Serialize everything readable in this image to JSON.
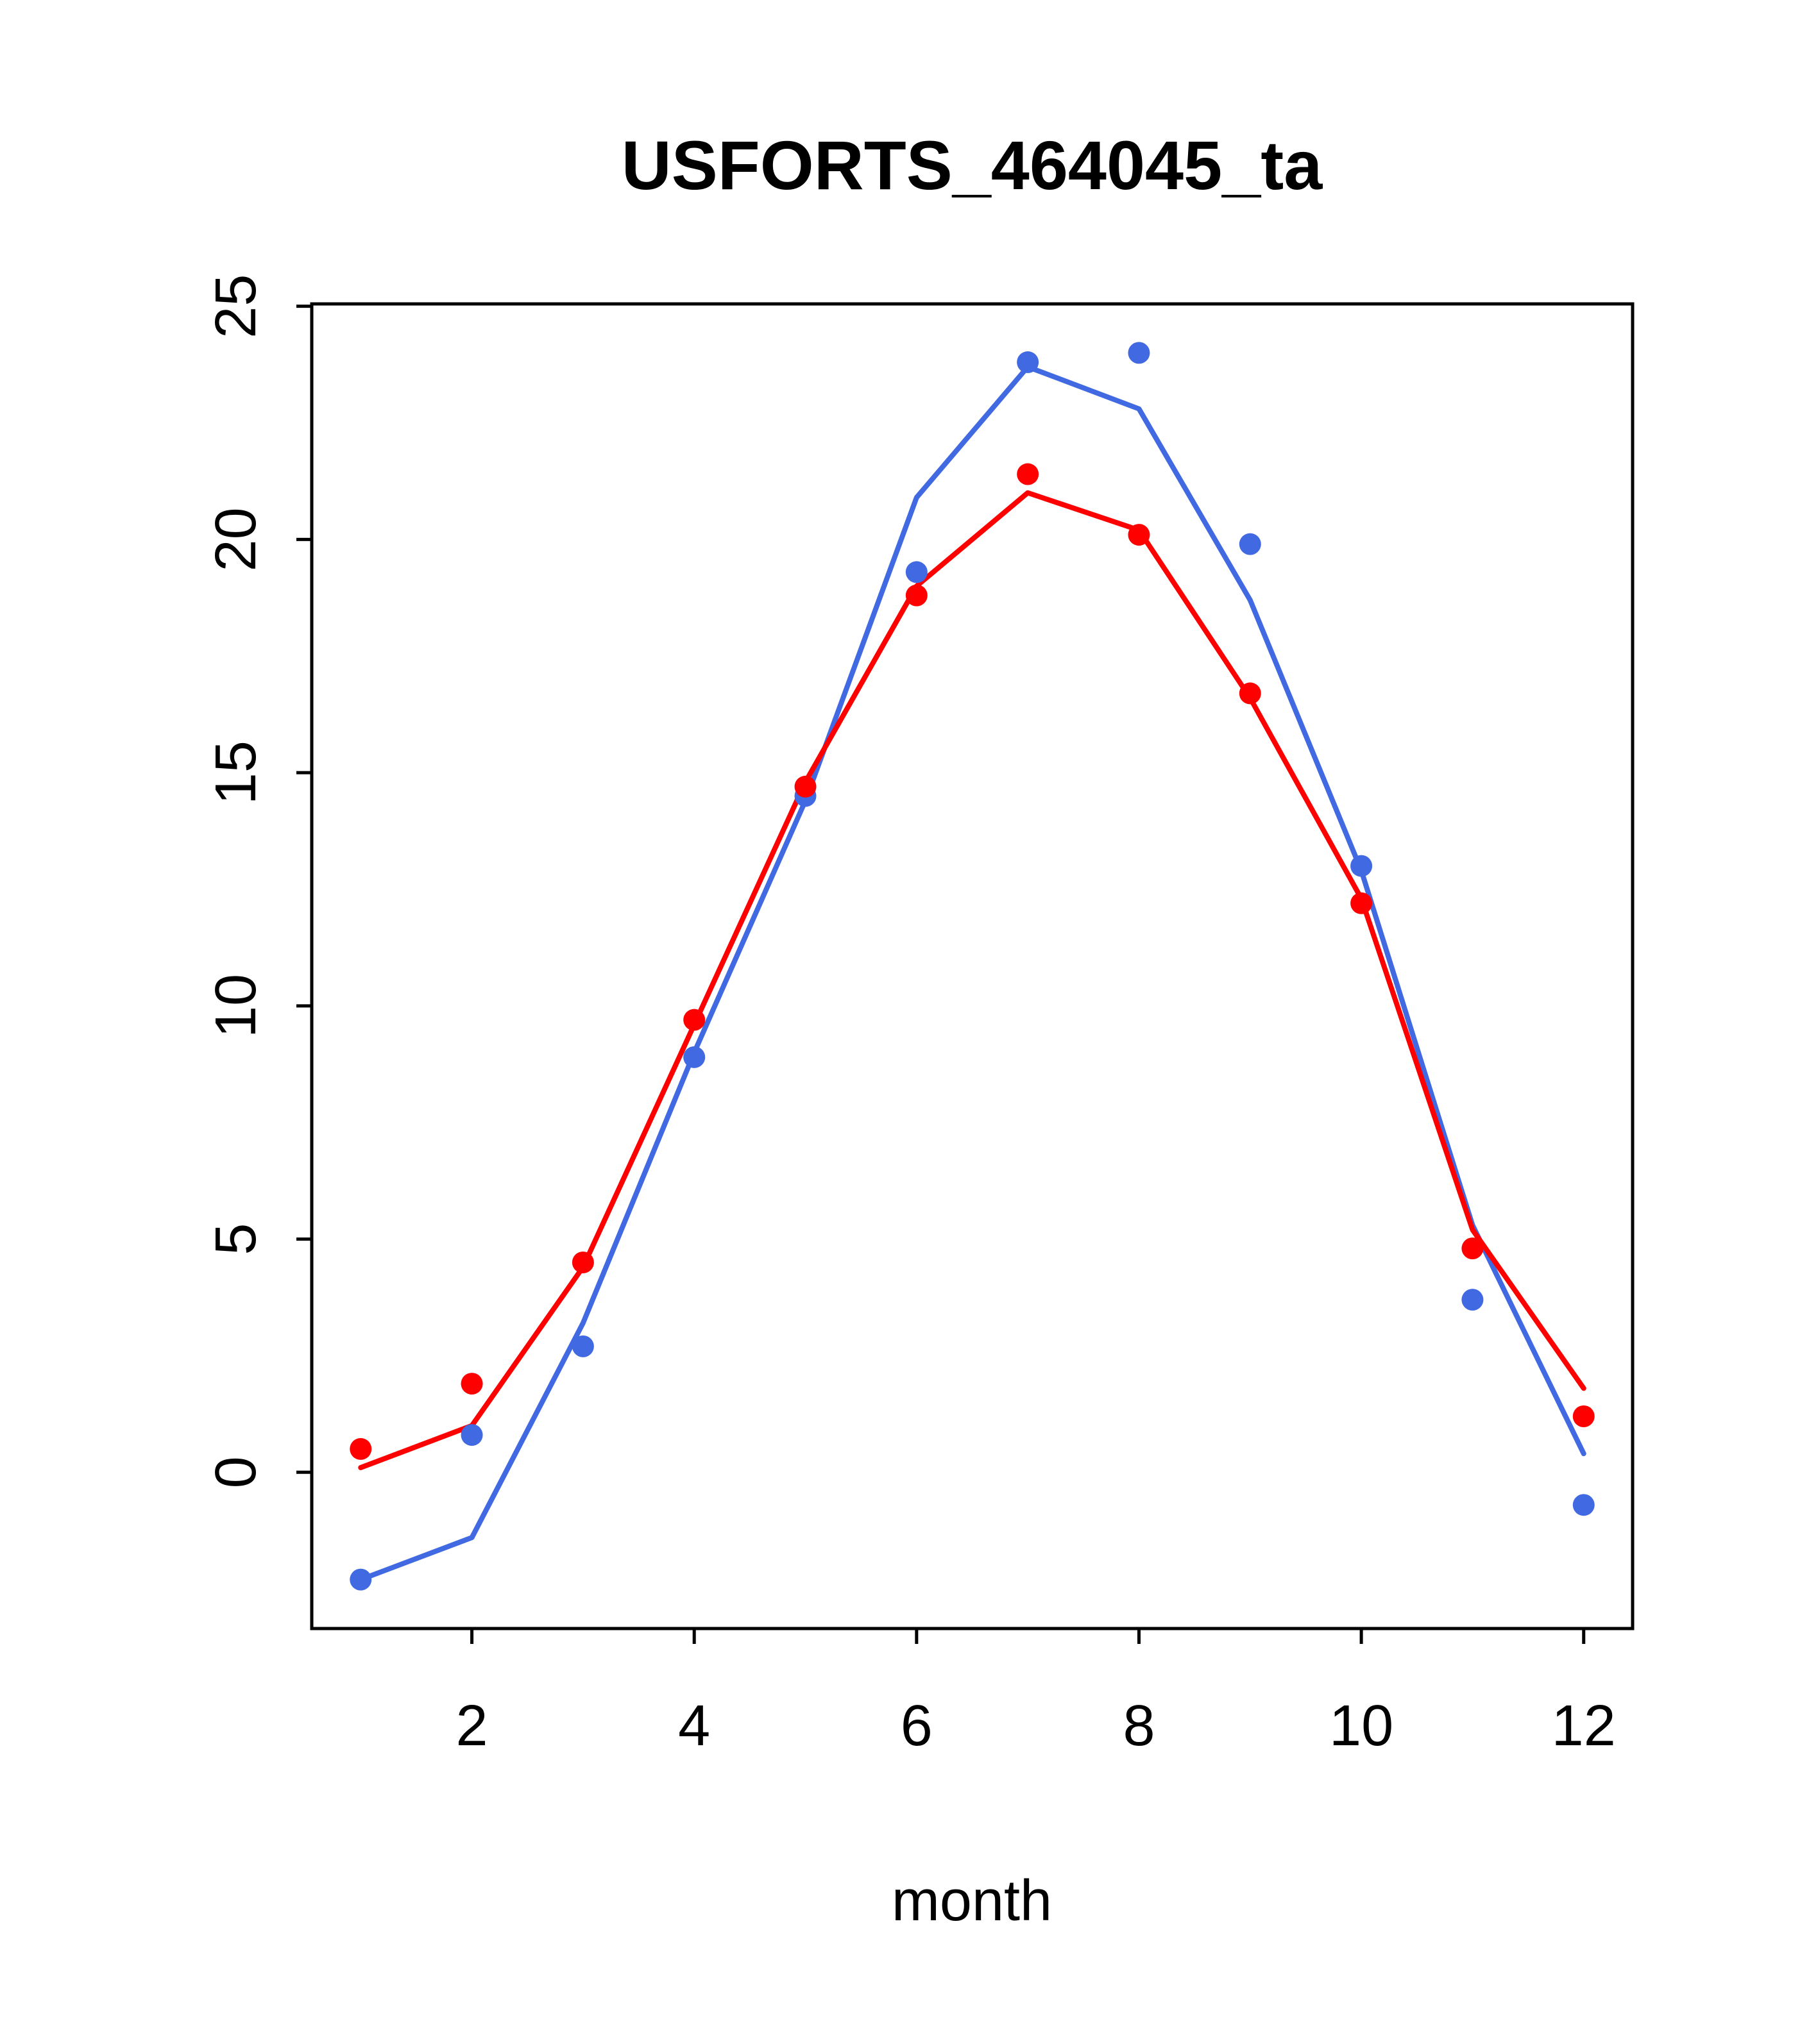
{
  "chart_data": {
    "type": "line",
    "title": "USFORTS_464045_ta",
    "xlabel": "month",
    "ylabel": "",
    "grid": false,
    "legend": "none",
    "axis_color": "#000000",
    "x": [
      1,
      2,
      3,
      4,
      5,
      6,
      7,
      8,
      9,
      10,
      11,
      12
    ],
    "xticks": [
      2,
      4,
      6,
      8,
      10,
      12
    ],
    "yticks": [
      0,
      5,
      10,
      15,
      20,
      25
    ],
    "xlim": [
      0.56,
      12.44
    ],
    "ylim": [
      -3.35,
      25.05
    ],
    "series": [
      {
        "name": "blue-series",
        "color": "#4169E1",
        "marker": "circle",
        "points": [
          -2.3,
          0.8,
          2.7,
          8.9,
          14.5,
          19.3,
          23.8,
          24.0,
          19.9,
          13.0,
          3.7,
          -0.7
        ],
        "line": [
          -2.3,
          -1.4,
          3.2,
          9.0,
          14.4,
          20.9,
          23.7,
          22.8,
          18.7,
          12.9,
          5.3,
          0.4
        ]
      },
      {
        "name": "red-series",
        "color": "#FF0000",
        "marker": "circle",
        "points": [
          0.5,
          1.9,
          4.5,
          9.7,
          14.7,
          18.8,
          21.4,
          20.1,
          16.7,
          12.2,
          4.8,
          1.2
        ],
        "line": [
          0.1,
          1.0,
          4.4,
          9.6,
          14.8,
          19.0,
          21.0,
          20.2,
          16.6,
          12.3,
          5.2,
          1.8
        ]
      }
    ]
  }
}
